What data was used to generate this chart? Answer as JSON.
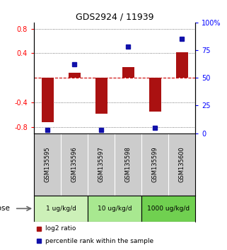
{
  "title": "GDS2924 / 11939",
  "samples": [
    "GSM135595",
    "GSM135596",
    "GSM135597",
    "GSM135598",
    "GSM135599",
    "GSM135600"
  ],
  "log2_ratio": [
    -0.72,
    0.08,
    -0.58,
    0.18,
    -0.55,
    0.42
  ],
  "percentile_rank": [
    3,
    62,
    3,
    78,
    5,
    85
  ],
  "dose_groups": [
    {
      "label": "1 ug/kg/d",
      "color": "#ccf0b8",
      "start": 0,
      "end": 1
    },
    {
      "label": "10 ug/kg/d",
      "color": "#a8e890",
      "start": 2,
      "end": 3
    },
    {
      "label": "1000 ug/kg/d",
      "color": "#70d050",
      "start": 4,
      "end": 5
    }
  ],
  "bar_color": "#aa1111",
  "dot_color": "#1111aa",
  "ylim_left": [
    -0.9,
    0.9
  ],
  "yticks_left": [
    -0.8,
    -0.4,
    0.4,
    0.8
  ],
  "yticks_right": [
    0,
    25,
    50,
    75,
    100
  ],
  "hline_y": 0.0,
  "hline_color": "#cc0000",
  "dotline_color": "#555555",
  "background_color": "#ffffff",
  "sample_bg_color": "#cccccc",
  "dose_label": "dose"
}
